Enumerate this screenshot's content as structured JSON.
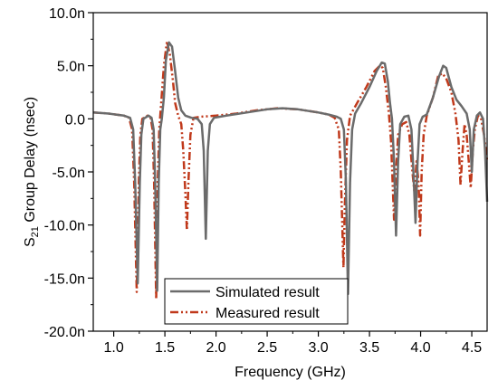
{
  "chart_data": {
    "type": "line",
    "title": "",
    "xlabel": "Frequency (GHz)",
    "ylabel_main": "S",
    "ylabel_sub": "21",
    "ylabel_rest": " Group Delay (nsec)",
    "xlim": [
      0.8,
      4.65
    ],
    "ylim": [
      -20,
      10
    ],
    "x_ticks": [
      1.0,
      1.5,
      2.0,
      2.5,
      3.0,
      3.5,
      4.0,
      4.5
    ],
    "x_tick_labels": [
      "1.0",
      "1.5",
      "2.0",
      "2.5",
      "3.0",
      "3.5",
      "4.0",
      "4.5"
    ],
    "y_ticks": [
      10,
      5,
      0,
      -5,
      -10,
      -15,
      -20
    ],
    "y_tick_labels": [
      "10.0n",
      "5.0n",
      "0.0",
      "-5.0n",
      "-10.0n",
      "-15.0n",
      "-20.0n"
    ],
    "grid": false,
    "legend_position": "bottom-left",
    "colors": {
      "simulated": "#6b6b6b",
      "measured": "#c0391b",
      "axis": "#000000"
    },
    "series": [
      {
        "name": "Simulated result",
        "style": "solid",
        "points": [
          [
            0.8,
            0.6
          ],
          [
            0.95,
            0.5
          ],
          [
            1.1,
            0.3
          ],
          [
            1.16,
            0.1
          ],
          [
            1.19,
            -1
          ],
          [
            1.21,
            -6
          ],
          [
            1.235,
            -15.5
          ],
          [
            1.255,
            -6
          ],
          [
            1.27,
            -1.5
          ],
          [
            1.29,
            0
          ],
          [
            1.34,
            0.3
          ],
          [
            1.37,
            0.1
          ],
          [
            1.39,
            -1
          ],
          [
            1.405,
            -6
          ],
          [
            1.425,
            -16.2
          ],
          [
            1.44,
            -6
          ],
          [
            1.455,
            -1
          ],
          [
            1.47,
            0
          ],
          [
            1.49,
            2
          ],
          [
            1.51,
            5.5
          ],
          [
            1.54,
            7.2
          ],
          [
            1.57,
            6.8
          ],
          [
            1.6,
            4.5
          ],
          [
            1.63,
            2
          ],
          [
            1.66,
            0.8
          ],
          [
            1.7,
            0.3
          ],
          [
            1.76,
            0.1
          ],
          [
            1.82,
            0
          ],
          [
            1.86,
            -0.5
          ],
          [
            1.88,
            -3
          ],
          [
            1.9,
            -11.3
          ],
          [
            1.92,
            -3
          ],
          [
            1.94,
            -0.5
          ],
          [
            1.98,
            0.1
          ],
          [
            2.1,
            0.3
          ],
          [
            2.3,
            0.6
          ],
          [
            2.5,
            0.9
          ],
          [
            2.65,
            1.0
          ],
          [
            2.8,
            0.9
          ],
          [
            3.0,
            0.6
          ],
          [
            3.1,
            0.4
          ],
          [
            3.18,
            0.2
          ],
          [
            3.22,
            0
          ],
          [
            3.25,
            -1
          ],
          [
            3.27,
            -6
          ],
          [
            3.29,
            -16.5
          ],
          [
            3.31,
            -6
          ],
          [
            3.33,
            -1
          ],
          [
            3.36,
            0.5
          ],
          [
            3.42,
            1.5
          ],
          [
            3.5,
            3
          ],
          [
            3.57,
            4.5
          ],
          [
            3.62,
            5.3
          ],
          [
            3.65,
            5.2
          ],
          [
            3.68,
            3.5
          ],
          [
            3.7,
            1.5
          ],
          [
            3.72,
            0
          ],
          [
            3.74,
            -4
          ],
          [
            3.76,
            -11
          ],
          [
            3.78,
            -4
          ],
          [
            3.8,
            -0.5
          ],
          [
            3.84,
            0.2
          ],
          [
            3.88,
            0.3
          ],
          [
            3.91,
            -1
          ],
          [
            3.93,
            -5
          ],
          [
            3.95,
            -9.8
          ],
          [
            3.97,
            -4
          ],
          [
            3.99,
            -0.5
          ],
          [
            4.02,
            0.2
          ],
          [
            4.06,
            0.4
          ],
          [
            4.12,
            2
          ],
          [
            4.18,
            4
          ],
          [
            4.22,
            5
          ],
          [
            4.25,
            4.8
          ],
          [
            4.3,
            3
          ],
          [
            4.35,
            1.8
          ],
          [
            4.4,
            1.2
          ],
          [
            4.45,
            0.5
          ],
          [
            4.48,
            -1
          ],
          [
            4.5,
            -5
          ],
          [
            4.52,
            -1
          ],
          [
            4.55,
            0.3
          ],
          [
            4.58,
            0.6
          ],
          [
            4.61,
            0
          ],
          [
            4.63,
            -3
          ],
          [
            4.65,
            -7.8
          ]
        ]
      },
      {
        "name": "Measured result",
        "style": "dash-dot-dot",
        "points": [
          [
            0.8,
            0.6
          ],
          [
            0.95,
            0.5
          ],
          [
            1.1,
            0.3
          ],
          [
            1.15,
            0.1
          ],
          [
            1.18,
            -1
          ],
          [
            1.2,
            -6
          ],
          [
            1.225,
            -16.3
          ],
          [
            1.245,
            -6
          ],
          [
            1.26,
            -1.5
          ],
          [
            1.28,
            0
          ],
          [
            1.33,
            0.3
          ],
          [
            1.36,
            0.1
          ],
          [
            1.38,
            -1
          ],
          [
            1.395,
            -6
          ],
          [
            1.415,
            -17
          ],
          [
            1.43,
            -6
          ],
          [
            1.445,
            -1
          ],
          [
            1.46,
            1
          ],
          [
            1.49,
            5
          ],
          [
            1.52,
            7.3
          ],
          [
            1.55,
            6
          ],
          [
            1.58,
            3.5
          ],
          [
            1.6,
            1.5
          ],
          [
            1.63,
            0.3
          ],
          [
            1.66,
            -0.5
          ],
          [
            1.68,
            -3
          ],
          [
            1.7,
            -7
          ],
          [
            1.715,
            -10.5
          ],
          [
            1.73,
            -6
          ],
          [
            1.75,
            -1.5
          ],
          [
            1.78,
            0.1
          ],
          [
            1.85,
            0.2
          ],
          [
            2.0,
            0.3
          ],
          [
            2.2,
            0.5
          ],
          [
            2.4,
            0.8
          ],
          [
            2.6,
            1.0
          ],
          [
            2.8,
            0.9
          ],
          [
            3.0,
            0.6
          ],
          [
            3.1,
            0.4
          ],
          [
            3.16,
            0.1
          ],
          [
            3.2,
            -1
          ],
          [
            3.22,
            -5
          ],
          [
            3.245,
            -14
          ],
          [
            3.26,
            -8
          ],
          [
            3.28,
            -2
          ],
          [
            3.31,
            0.3
          ],
          [
            3.38,
            1.5
          ],
          [
            3.47,
            3
          ],
          [
            3.55,
            4.5
          ],
          [
            3.6,
            5
          ],
          [
            3.63,
            4.8
          ],
          [
            3.66,
            3
          ],
          [
            3.69,
            0.5
          ],
          [
            3.71,
            -2
          ],
          [
            3.74,
            -9.5
          ],
          [
            3.76,
            -5
          ],
          [
            3.78,
            -1.5
          ],
          [
            3.82,
            -0.5
          ],
          [
            3.86,
            -0.3
          ],
          [
            3.89,
            -1.5
          ],
          [
            3.92,
            -5
          ],
          [
            3.94,
            -7
          ],
          [
            3.96,
            -4
          ],
          [
            3.98,
            -6
          ],
          [
            3.995,
            -11
          ],
          [
            4.01,
            -5
          ],
          [
            4.03,
            -1.5
          ],
          [
            4.06,
            0.3
          ],
          [
            4.12,
            2
          ],
          [
            4.17,
            4
          ],
          [
            4.21,
            4.3
          ],
          [
            4.25,
            3.8
          ],
          [
            4.3,
            2.5
          ],
          [
            4.34,
            0.5
          ],
          [
            4.37,
            -2
          ],
          [
            4.39,
            -6.2
          ],
          [
            4.41,
            -3
          ],
          [
            4.43,
            -0.5
          ],
          [
            4.45,
            -1.5
          ],
          [
            4.47,
            -4
          ],
          [
            4.49,
            -6.5
          ],
          [
            4.51,
            -3
          ],
          [
            4.53,
            -1
          ],
          [
            4.56,
            0.3
          ],
          [
            4.59,
            0.1
          ],
          [
            4.62,
            -1.5
          ],
          [
            4.65,
            -4
          ]
        ]
      }
    ]
  }
}
